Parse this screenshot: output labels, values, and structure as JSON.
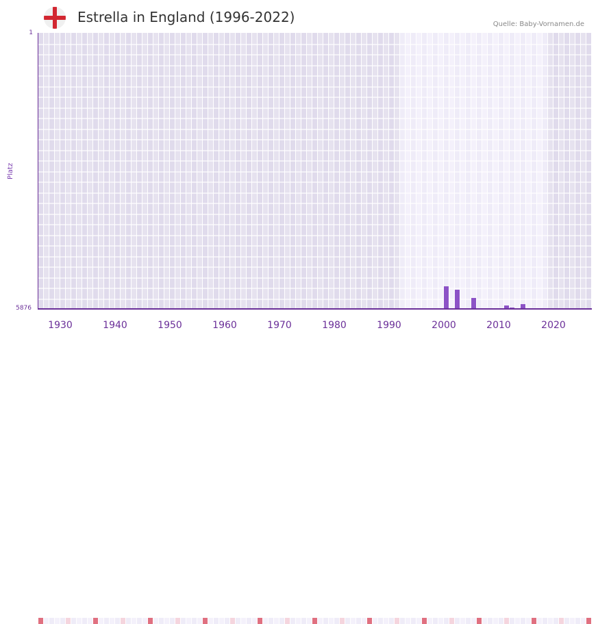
{
  "header": {
    "title": "Estrella in England (1996-2022)",
    "source": "Quelle: Baby-Vornamen.de",
    "flag_icon": "england-flag-icon"
  },
  "colors": {
    "bar": "#8c52c6",
    "axis": "#6a2e98",
    "marker_decade": "#e07080",
    "marker_half": "#f5d5de",
    "bg_dark": "#e2dded",
    "bg_light": "#f1eef9"
  },
  "chart_data": {
    "type": "bar",
    "title": "Estrella in England (1996-2022)",
    "xlabel": "",
    "ylabel": "Platz",
    "ylim": [
      5876,
      1
    ],
    "xlim": [
      1928,
      2028
    ],
    "y_ticks": [
      "1",
      "5876"
    ],
    "x_ticks": [
      "1930",
      "1940",
      "1950",
      "1960",
      "1970",
      "1980",
      "1990",
      "2000",
      "2010",
      "2020"
    ],
    "highlight_range": [
      1994,
      2020
    ],
    "x": [
      2002,
      2004,
      2007,
      2013,
      2014,
      2016
    ],
    "values": [
      5408,
      5481,
      5657,
      5818,
      5861,
      5789
    ],
    "grid": true,
    "legend": "none"
  }
}
